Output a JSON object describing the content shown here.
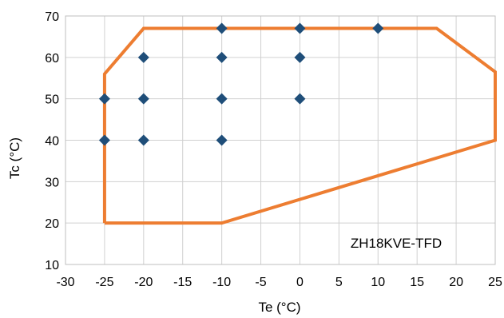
{
  "chart_data": {
    "type": "scatter",
    "xlabel": "Te (°C)",
    "ylabel": "Tc (°C)",
    "xlim": [
      -30,
      25
    ],
    "ylim": [
      10,
      70
    ],
    "xticks": [
      -30,
      -25,
      -20,
      -15,
      -10,
      -5,
      0,
      5,
      10,
      15,
      20,
      25
    ],
    "yticks": [
      10,
      20,
      30,
      40,
      50,
      60,
      70
    ],
    "grid": true,
    "annotation": "ZH18KVE-TFD",
    "colors": {
      "points": "#1f4e79",
      "envelope": "#ed7d31",
      "grid": "#d0d0d0"
    },
    "series": [
      {
        "kind": "points",
        "x": [
          -25,
          -25,
          -20,
          -20,
          -20,
          -10,
          -10,
          -10,
          -10,
          0,
          0,
          0,
          10
        ],
        "y": [
          40,
          50,
          40,
          50,
          60,
          40,
          50,
          60,
          67,
          50,
          60,
          67,
          67
        ]
      },
      {
        "kind": "envelope",
        "x": [
          -25,
          -25,
          -20,
          17.5,
          25,
          25,
          -10,
          -25
        ],
        "y": [
          20,
          56,
          67,
          67,
          56.5,
          40,
          20,
          20
        ]
      }
    ]
  }
}
